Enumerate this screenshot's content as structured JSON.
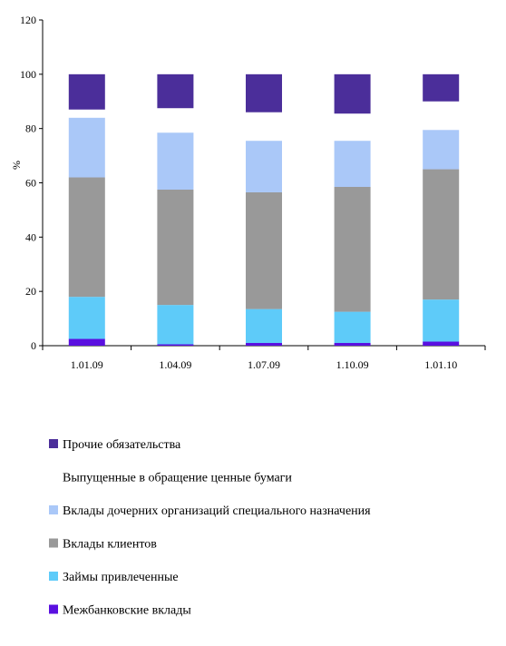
{
  "chart_data": {
    "type": "bar",
    "stacked": true,
    "categories": [
      "1.01.09",
      "1.04.09",
      "1.07.09",
      "1.10.09",
      "1.01.10"
    ],
    "ylabel": "%",
    "ylim": [
      0,
      120
    ],
    "yticks": [
      0,
      20,
      40,
      60,
      80,
      100,
      120
    ],
    "grid": false,
    "legend_position": "bottom",
    "series": [
      {
        "name": "Межбанковские вклады",
        "color": "#5a10e0",
        "values": [
          2.5,
          0.5,
          1.0,
          1.0,
          1.5
        ]
      },
      {
        "name": "Займы привлеченные",
        "color": "#5ecbf9",
        "values": [
          15.5,
          14.5,
          12.5,
          11.5,
          15.5
        ]
      },
      {
        "name": "Вклады клиентов",
        "color": "#999999",
        "values": [
          44.0,
          42.5,
          43.0,
          46.0,
          48.0
        ]
      },
      {
        "name": "Вклады дочерних организаций специального назначения",
        "color": "#aac8f8",
        "values": [
          22.0,
          21.0,
          19.0,
          17.0,
          14.5
        ]
      },
      {
        "name": "Выпущенные в обращение ценные бумаги",
        "color": "#ffffff",
        "values": [
          3.0,
          9.0,
          10.5,
          10.0,
          10.5
        ]
      },
      {
        "name": "Прочие обязательства",
        "color": "#4b2e9a",
        "values": [
          13.0,
          12.5,
          14.0,
          14.5,
          10.0
        ]
      }
    ]
  }
}
